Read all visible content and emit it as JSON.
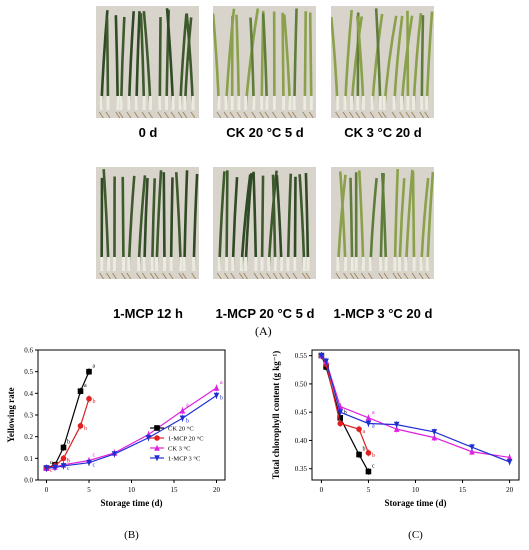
{
  "panel_a": {
    "panel_label": "(A)",
    "photos": [
      {
        "label": "0 d"
      },
      {
        "label": "CK 20 °C 5 d"
      },
      {
        "label": "CK 3 °C 20 d"
      },
      {
        "label": "1-MCP 12 h"
      },
      {
        "label": "1-MCP 20 °C 5 d"
      },
      {
        "label": "1-MCP 3 °C 20 d"
      }
    ]
  },
  "colors": {
    "ck20": "#000000",
    "mcp20": "#e02020",
    "ck3": "#e020e0",
    "mcp3": "#2030d0"
  },
  "chart_data": [
    {
      "type": "line",
      "panel_label": "(B)",
      "xlabel": "Storage time (d)",
      "ylabel": "Yellowing rate",
      "xlim": [
        -1,
        21
      ],
      "ylim": [
        0.0,
        0.6
      ],
      "xticks": [
        0,
        5,
        10,
        15,
        20
      ],
      "yticks": [
        0.0,
        0.1,
        0.2,
        0.3,
        0.4,
        0.5,
        0.6
      ],
      "ytick_labels": [
        "0.0",
        "0.1",
        "0.2",
        "0.3",
        "0.4",
        "0.5",
        "0.6"
      ],
      "legend_position": "right",
      "series": [
        {
          "name": "CK 20 °C",
          "color": "#000000",
          "marker": "square",
          "x": [
            0,
            1,
            2,
            4,
            5
          ],
          "y": [
            0.055,
            0.07,
            0.15,
            0.41,
            0.5
          ],
          "letters": [
            "c",
            "",
            "b",
            "a",
            "a"
          ]
        },
        {
          "name": "1-MCP 20 °C",
          "color": "#e02020",
          "marker": "circle",
          "x": [
            0,
            1,
            2,
            4,
            5
          ],
          "y": [
            0.055,
            0.065,
            0.1,
            0.25,
            0.375
          ],
          "letters": [
            "c",
            "",
            "b",
            "b",
            "b"
          ]
        },
        {
          "name": "CK 3 °C",
          "color": "#e020e0",
          "marker": "triangle",
          "x": [
            0,
            1,
            2,
            5,
            8,
            12,
            16,
            20
          ],
          "y": [
            0.055,
            0.06,
            0.07,
            0.09,
            0.125,
            0.21,
            0.32,
            0.425
          ],
          "letters": [
            "",
            "",
            "c",
            "c",
            "",
            "",
            "a",
            "a"
          ]
        },
        {
          "name": "1-MCP 3 °C",
          "color": "#2030d0",
          "marker": "tri-down",
          "x": [
            0,
            1,
            2,
            5,
            8,
            12,
            16,
            20
          ],
          "y": [
            0.055,
            0.058,
            0.065,
            0.08,
            0.12,
            0.195,
            0.285,
            0.39
          ],
          "letters": [
            "",
            "",
            "c",
            "c",
            "",
            "",
            "b",
            "b"
          ]
        }
      ]
    },
    {
      "type": "line",
      "panel_label": "(C)",
      "xlabel": "Storage time (d)",
      "ylabel": "Total chlorophyll content (g kg⁻¹)",
      "xlim": [
        -1,
        21
      ],
      "ylim": [
        0.33,
        0.56
      ],
      "xticks": [
        0,
        5,
        10,
        15,
        20
      ],
      "yticks": [
        0.35,
        0.4,
        0.45,
        0.5,
        0.55
      ],
      "ytick_labels": [
        "0.35",
        "0.40",
        "0.45",
        "0.50",
        "0.55"
      ],
      "series": [
        {
          "name": "CK 20 °C",
          "color": "#000000",
          "marker": "square",
          "x": [
            0,
            0.5,
            2,
            4,
            5
          ],
          "y": [
            0.55,
            0.53,
            0.44,
            0.375,
            0.345
          ],
          "letters": [
            "",
            "",
            "b",
            "b",
            "c"
          ]
        },
        {
          "name": "1-MCP 20 °C",
          "color": "#e02020",
          "marker": "circle",
          "x": [
            0,
            0.5,
            2,
            4,
            5
          ],
          "y": [
            0.55,
            0.535,
            0.43,
            0.42,
            0.378
          ],
          "letters": [
            "",
            "",
            "",
            "a",
            "b"
          ]
        },
        {
          "name": "CK 3 °C",
          "color": "#e020e0",
          "marker": "triangle",
          "x": [
            0,
            0.5,
            2,
            5,
            8,
            12,
            16,
            20
          ],
          "y": [
            0.55,
            0.54,
            0.46,
            0.44,
            0.42,
            0.405,
            0.38,
            0.37
          ],
          "letters": [
            "",
            "",
            "",
            "a",
            "",
            "",
            "",
            ""
          ]
        },
        {
          "name": "1-MCP 3 °C",
          "color": "#2030d0",
          "marker": "tri-down",
          "x": [
            0,
            0.5,
            2,
            5,
            8,
            12,
            16,
            20
          ],
          "y": [
            0.55,
            0.54,
            0.45,
            0.43,
            0.428,
            0.415,
            0.388,
            0.362
          ],
          "letters": [
            "",
            "",
            "",
            "a",
            "",
            "",
            "",
            ""
          ]
        }
      ]
    }
  ]
}
